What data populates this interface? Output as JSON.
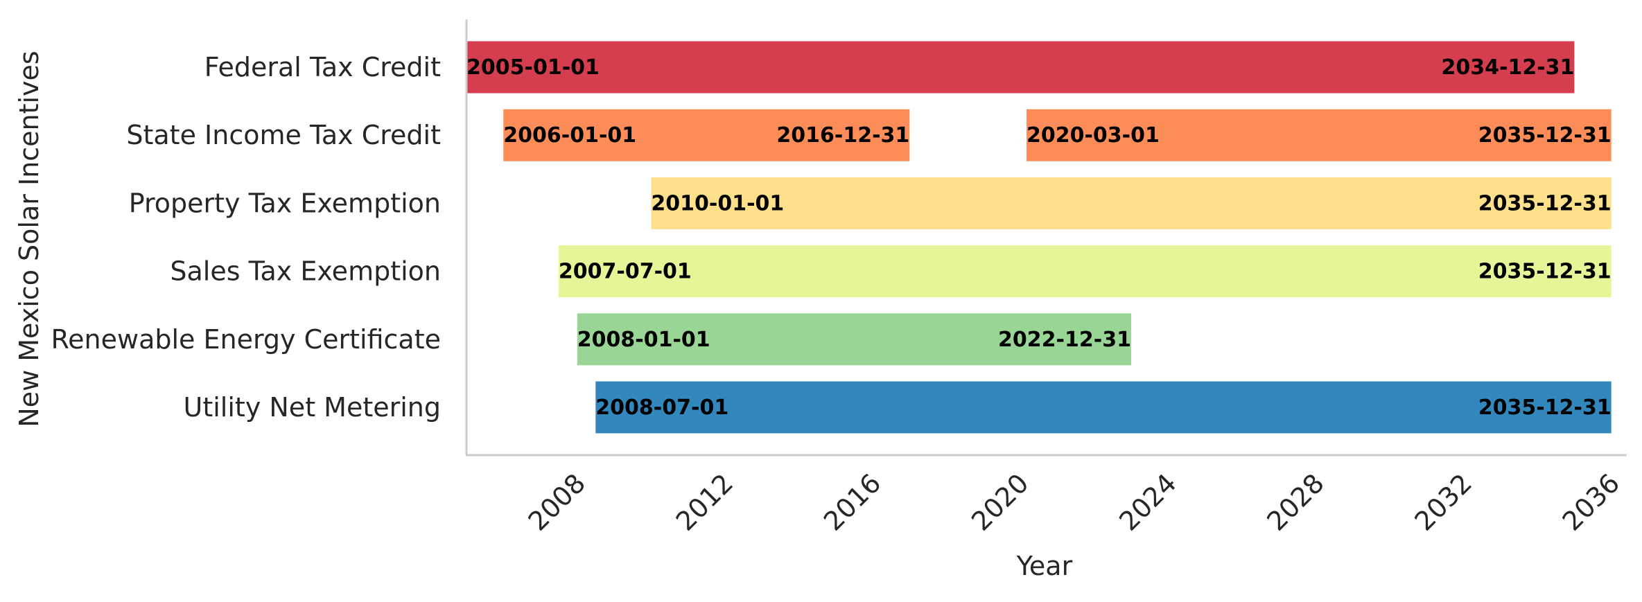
{
  "chart_data": {
    "type": "bar",
    "orientation": "horizontal-gantt",
    "ylabel": "New Mexico Solar Incentives",
    "xlabel": "Year",
    "xlim": [
      "2005-01-01",
      "2036-06-01"
    ],
    "xticks": [
      "2008",
      "2012",
      "2016",
      "2020",
      "2024",
      "2028",
      "2032",
      "2036"
    ],
    "grid": false,
    "categories": [
      "Federal Tax Credit",
      "State Income Tax Credit",
      "Property Tax Exemption",
      "Sales Tax Exemption",
      "Renewable Energy Certificate",
      "Utility Net Metering"
    ],
    "bars": [
      {
        "category": "Federal Tax Credit",
        "start": "2005-01-01",
        "end": "2034-12-31",
        "color": "#d53e4f"
      },
      {
        "category": "State Income Tax Credit",
        "start": "2006-01-01",
        "end": "2016-12-31",
        "color": "#fc8d59"
      },
      {
        "category": "State Income Tax Credit",
        "start": "2020-03-01",
        "end": "2035-12-31",
        "color": "#fc8d59"
      },
      {
        "category": "Property Tax Exemption",
        "start": "2010-01-01",
        "end": "2035-12-31",
        "color": "#fee08b"
      },
      {
        "category": "Sales Tax Exemption",
        "start": "2007-07-01",
        "end": "2035-12-31",
        "color": "#e6f598"
      },
      {
        "category": "Renewable Energy Certificate",
        "start": "2008-01-01",
        "end": "2022-12-31",
        "color": "#99d594"
      },
      {
        "category": "Utility Net Metering",
        "start": "2008-07-01",
        "end": "2035-12-31",
        "color": "#3288bd"
      }
    ]
  }
}
